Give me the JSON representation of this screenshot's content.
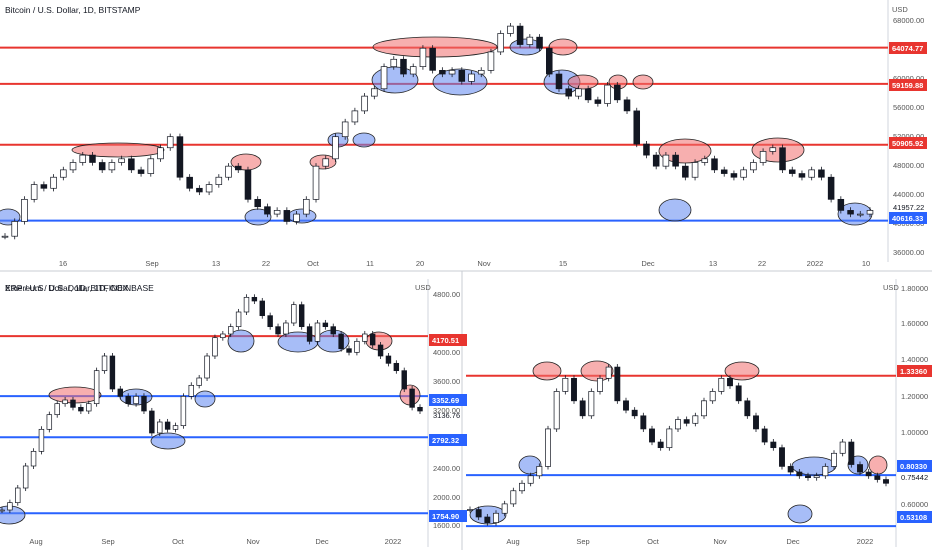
{
  "charts": [
    {
      "title": "Bitcoin / U.S. Dollar, 1D, BITSTAMP",
      "currency": "USD",
      "y_ticks": [
        "68000.00",
        "64000.00",
        "60000.00",
        "56000.00",
        "52000.00",
        "48000.00",
        "44000.00",
        "40000.00",
        "36000.00"
      ],
      "x_ticks": [
        "16",
        "Sep",
        "13",
        "22",
        "Oct",
        "11",
        "20",
        "Nov",
        "15",
        "Dec",
        "13",
        "22",
        "2022",
        "10"
      ],
      "price_labels": [
        {
          "value": "64074.77",
          "color": "#e8352f"
        },
        {
          "value": "59159.88",
          "color": "#e8352f"
        },
        {
          "value": "50905.92",
          "color": "#e8352f"
        },
        {
          "value": "41957.22",
          "color": ""
        },
        {
          "value": "40616.33",
          "color": "#2962ff"
        }
      ]
    },
    {
      "title": "Ethereum / U.S. Dollar, 1D, COINBASE",
      "currency": "USD",
      "y_ticks": [
        "4800.00",
        "4400.00",
        "4000.00",
        "3600.00",
        "3200.00",
        "2800.00",
        "2400.00",
        "2000.00",
        "1600.00"
      ],
      "x_ticks": [
        "Aug",
        "Sep",
        "Oct",
        "Nov",
        "Dec",
        "2022"
      ],
      "price_labels": [
        {
          "value": "4170.51",
          "color": "#e8352f"
        },
        {
          "value": "3352.69",
          "color": "#2962ff"
        },
        {
          "value": "3136.76",
          "color": ""
        },
        {
          "value": "2792.32",
          "color": "#2962ff"
        },
        {
          "value": "1754.90",
          "color": "#2962ff"
        }
      ]
    },
    {
      "title": "XRP / U.S. Dollar, 1D, BITFINEX",
      "currency": "USD",
      "y_ticks": [
        "1.80000",
        "1.60000",
        "1.40000",
        "1.20000",
        "1.00000",
        "0.60000"
      ],
      "x_ticks": [
        "Aug",
        "Sep",
        "Oct",
        "Nov",
        "Dec",
        "2022"
      ],
      "price_labels": [
        {
          "value": "1.33360",
          "color": "#e8352f"
        },
        {
          "value": "0.80330",
          "color": "#2962ff"
        },
        {
          "value": "0.75442",
          "color": ""
        },
        {
          "value": "0.53108",
          "color": "#2962ff"
        }
      ]
    }
  ],
  "chart_data": [
    {
      "type": "line",
      "title": "Bitcoin / U.S. Dollar, 1D, BITSTAMP",
      "ylabel": "USD",
      "ylim": [
        35000,
        70000
      ],
      "levels": [
        {
          "value": 64074.77,
          "color": "#e8352f"
        },
        {
          "value": 59159.88,
          "color": "#e8352f"
        },
        {
          "value": 50905.92,
          "color": "#e8352f"
        },
        {
          "value": 40616.33,
          "color": "#2962ff"
        }
      ],
      "last_price": 41957.22,
      "series": [
        {
          "values": [
            38500,
            40500,
            43500,
            45500,
            45000,
            46500,
            47500,
            48500,
            49500,
            48500,
            47500,
            48500,
            49000,
            47500,
            47000,
            49000,
            50500,
            52000,
            46500,
            45000,
            44500,
            45500,
            46500,
            48000,
            47500,
            43500,
            42500,
            41500,
            42000,
            40500,
            41500,
            43500,
            48000,
            49000,
            52000,
            54000,
            55500,
            57500,
            58500,
            61500,
            62500,
            60500,
            61500,
            64000,
            61000,
            60500,
            61000,
            59500,
            60500,
            61000,
            63500,
            66000,
            67000,
            64500,
            65500,
            64000,
            60500,
            58500,
            57500,
            58500,
            57000,
            56500,
            59000,
            57000,
            55500,
            51000,
            49500,
            48000,
            49500,
            48000,
            46500,
            48500,
            49000,
            47500,
            47000,
            46500,
            47500,
            48500,
            50000,
            50500,
            47500,
            47000,
            46500,
            47500,
            46500,
            43500,
            42000,
            41500,
            41500,
            42000
          ]
        }
      ]
    },
    {
      "type": "line",
      "title": "Ethereum / U.S. Dollar, 1D, COINBASE",
      "ylabel": "USD",
      "ylim": [
        1500,
        4950
      ],
      "levels": [
        {
          "value": 4170.51,
          "color": "#e8352f"
        },
        {
          "value": 3352.69,
          "color": "#2962ff"
        },
        {
          "value": 2792.32,
          "color": "#2962ff"
        },
        {
          "value": 1754.9,
          "color": "#2962ff"
        }
      ],
      "last_price": 3136.76,
      "series": [
        {
          "values": [
            1800,
            1900,
            2100,
            2400,
            2600,
            2900,
            3100,
            3250,
            3300,
            3200,
            3150,
            3250,
            3700,
            3900,
            3450,
            3350,
            3250,
            3350,
            3150,
            2850,
            3000,
            2900,
            2950,
            3350,
            3500,
            3600,
            3900,
            4150,
            4200,
            4300,
            4500,
            4700,
            4650,
            4450,
            4300,
            4200,
            4350,
            4600,
            4300,
            4100,
            4350,
            4300,
            4200,
            4000,
            3950,
            4100,
            4200,
            4050,
            3900,
            3800,
            3700,
            3450,
            3200,
            3150
          ]
        }
      ]
    },
    {
      "type": "line",
      "title": "XRP / U.S. Dollar, 1D, BITFINEX",
      "ylabel": "USD",
      "ylim": [
        0.5,
        1.85
      ],
      "levels": [
        {
          "value": 1.3336,
          "color": "#e8352f"
        },
        {
          "value": 0.8033,
          "color": "#2962ff"
        },
        {
          "value": 0.53108,
          "color": "#2962ff"
        }
      ],
      "last_price": 0.75442,
      "series": [
        {
          "values": [
            0.62,
            0.58,
            0.55,
            0.6,
            0.65,
            0.72,
            0.76,
            0.8,
            0.85,
            1.05,
            1.25,
            1.32,
            1.2,
            1.12,
            1.25,
            1.32,
            1.38,
            1.2,
            1.15,
            1.12,
            1.05,
            0.98,
            0.95,
            1.05,
            1.1,
            1.08,
            1.12,
            1.2,
            1.25,
            1.32,
            1.28,
            1.2,
            1.12,
            1.05,
            0.98,
            0.95,
            0.85,
            0.82,
            0.8,
            0.79,
            0.8,
            0.85,
            0.92,
            0.98,
            0.86,
            0.82,
            0.8,
            0.78,
            0.76
          ]
        }
      ]
    }
  ]
}
